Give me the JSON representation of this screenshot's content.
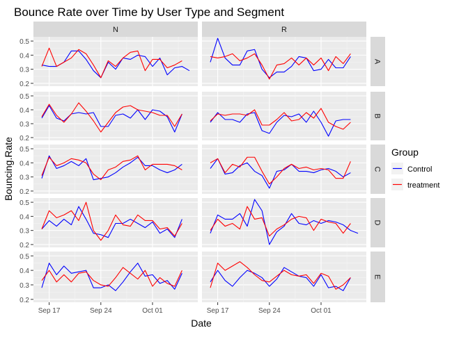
{
  "chart_data": {
    "type": "line",
    "title": "Bounce Rate over Time by User Type and Segment",
    "xlabel": "Date",
    "ylabel": "Bouncing.Rate",
    "facet_columns": [
      "N",
      "R"
    ],
    "facet_rows": [
      "A",
      "B",
      "C",
      "D",
      "E"
    ],
    "x_dates": [
      "Sep 16",
      "Sep 17",
      "Sep 18",
      "Sep 19",
      "Sep 20",
      "Sep 21",
      "Sep 22",
      "Sep 23",
      "Sep 24",
      "Sep 25",
      "Sep 26",
      "Sep 27",
      "Sep 28",
      "Sep 29",
      "Sep 30",
      "Oct 01",
      "Oct 02",
      "Oct 03",
      "Oct 04",
      "Oct 05",
      "Oct 06"
    ],
    "x_ticks": [
      "Sep 17",
      "Sep 24",
      "Oct 01"
    ],
    "y_ticks": [
      "0.2",
      "0.3",
      "0.4",
      "0.5"
    ],
    "ylim": [
      0.18,
      0.53
    ],
    "grid": true,
    "legend": {
      "title": "Group",
      "position": "right",
      "entries": [
        {
          "label": "Control",
          "color": "#0000FF"
        },
        {
          "label": "treatment",
          "color": "#FF0000"
        }
      ]
    },
    "panels": [
      {
        "col": "N",
        "row": "A",
        "series": [
          {
            "name": "Control",
            "values": [
              0.33,
              0.32,
              0.32,
              0.35,
              0.43,
              0.43,
              0.37,
              0.29,
              0.24,
              0.35,
              0.3,
              0.38,
              0.37,
              0.4,
              0.39,
              0.32,
              0.38,
              0.26,
              0.31,
              0.32,
              0.29
            ]
          },
          {
            "name": "treatment",
            "values": [
              0.32,
              0.45,
              0.32,
              0.35,
              0.38,
              0.44,
              0.41,
              0.33,
              0.24,
              0.36,
              0.32,
              0.38,
              0.42,
              0.43,
              0.29,
              0.37,
              0.37,
              0.31,
              0.33,
              0.36,
              null
            ]
          }
        ]
      },
      {
        "col": "R",
        "row": "A",
        "series": [
          {
            "name": "Control",
            "values": [
              0.35,
              0.52,
              0.38,
              0.33,
              0.33,
              0.43,
              0.44,
              0.3,
              0.24,
              0.28,
              0.28,
              0.32,
              0.39,
              0.38,
              0.29,
              0.3,
              0.37,
              0.31,
              0.31,
              0.39,
              null
            ]
          },
          {
            "name": "treatment",
            "values": [
              0.39,
              0.38,
              0.39,
              0.41,
              0.36,
              0.38,
              0.41,
              0.33,
              0.23,
              0.33,
              0.34,
              0.38,
              0.33,
              0.38,
              0.33,
              0.38,
              0.29,
              0.39,
              0.34,
              0.41,
              null
            ]
          }
        ]
      },
      {
        "col": "N",
        "row": "B",
        "series": [
          {
            "name": "Control",
            "values": [
              0.34,
              0.43,
              0.34,
              0.32,
              0.37,
              0.38,
              0.37,
              0.38,
              0.28,
              0.28,
              0.36,
              0.37,
              0.34,
              0.4,
              0.33,
              0.4,
              0.39,
              0.35,
              0.24,
              0.37,
              null
            ]
          },
          {
            "name": "treatment",
            "values": [
              0.35,
              0.44,
              0.36,
              0.31,
              0.37,
              0.45,
              0.39,
              0.32,
              0.24,
              0.31,
              0.38,
              0.42,
              0.43,
              0.4,
              0.39,
              0.38,
              0.36,
              0.36,
              0.28,
              0.37,
              null
            ]
          }
        ]
      },
      {
        "col": "R",
        "row": "B",
        "series": [
          {
            "name": "Control",
            "values": [
              0.31,
              0.38,
              0.33,
              0.33,
              0.31,
              0.37,
              0.38,
              0.25,
              0.23,
              0.31,
              0.36,
              0.35,
              0.37,
              0.31,
              0.39,
              0.31,
              0.21,
              0.32,
              0.33,
              0.33,
              null
            ]
          },
          {
            "name": "treatment",
            "values": [
              0.32,
              0.37,
              0.36,
              0.37,
              0.37,
              0.36,
              0.4,
              0.29,
              0.29,
              0.33,
              0.38,
              0.32,
              0.33,
              0.38,
              0.34,
              0.41,
              0.31,
              0.28,
              0.26,
              0.31,
              null
            ]
          }
        ]
      },
      {
        "col": "N",
        "row": "C",
        "series": [
          {
            "name": "Control",
            "values": [
              0.29,
              0.45,
              0.36,
              0.38,
              0.41,
              0.38,
              0.43,
              0.28,
              0.29,
              0.3,
              0.33,
              0.37,
              0.4,
              0.44,
              0.38,
              0.38,
              0.35,
              0.33,
              0.35,
              0.39,
              null
            ]
          },
          {
            "name": "treatment",
            "values": [
              0.31,
              0.44,
              0.38,
              0.4,
              0.43,
              0.42,
              0.4,
              0.32,
              0.28,
              0.35,
              0.37,
              0.41,
              0.42,
              0.45,
              0.35,
              0.39,
              0.39,
              0.39,
              0.38,
              0.35,
              null
            ]
          }
        ]
      },
      {
        "col": "R",
        "row": "C",
        "series": [
          {
            "name": "Control",
            "values": [
              0.36,
              0.43,
              0.32,
              0.33,
              0.38,
              0.4,
              0.34,
              0.31,
              0.22,
              0.34,
              0.35,
              0.39,
              0.34,
              0.34,
              0.33,
              0.35,
              0.36,
              0.34,
              0.3,
              0.33,
              null
            ]
          },
          {
            "name": "treatment",
            "values": [
              0.4,
              0.43,
              0.33,
              0.39,
              0.37,
              0.44,
              0.44,
              0.34,
              0.25,
              0.3,
              0.36,
              0.39,
              0.36,
              0.37,
              0.35,
              0.36,
              0.35,
              0.29,
              0.29,
              0.41,
              null
            ]
          }
        ]
      },
      {
        "col": "N",
        "row": "D",
        "series": [
          {
            "name": "Control",
            "values": [
              0.31,
              0.37,
              0.33,
              0.38,
              0.34,
              0.47,
              0.38,
              0.28,
              0.27,
              0.25,
              0.35,
              0.35,
              0.38,
              0.35,
              0.32,
              0.36,
              0.28,
              0.31,
              0.25,
              0.38,
              null
            ]
          },
          {
            "name": "treatment",
            "values": [
              0.31,
              0.44,
              0.39,
              0.41,
              0.44,
              0.37,
              0.5,
              0.3,
              0.23,
              0.3,
              0.41,
              0.34,
              0.33,
              0.41,
              0.37,
              0.37,
              0.31,
              0.32,
              0.26,
              0.35,
              null
            ]
          }
        ]
      },
      {
        "col": "R",
        "row": "D",
        "series": [
          {
            "name": "Control",
            "values": [
              0.28,
              0.41,
              0.38,
              0.38,
              0.42,
              0.33,
              0.52,
              0.44,
              0.2,
              0.29,
              0.33,
              0.42,
              0.35,
              0.34,
              0.37,
              0.35,
              0.37,
              0.36,
              0.34,
              0.3,
              0.28
            ]
          },
          {
            "name": "treatment",
            "values": [
              0.3,
              0.38,
              0.33,
              0.35,
              0.31,
              0.47,
              0.38,
              0.39,
              0.26,
              0.31,
              0.34,
              0.38,
              0.4,
              0.39,
              0.3,
              0.38,
              0.36,
              0.35,
              0.28,
              0.35,
              null
            ]
          }
        ]
      },
      {
        "col": "N",
        "row": "E",
        "series": [
          {
            "name": "Control",
            "values": [
              0.28,
              0.45,
              0.37,
              0.43,
              0.38,
              0.39,
              0.4,
              0.28,
              0.28,
              0.3,
              0.26,
              0.32,
              0.39,
              0.45,
              0.36,
              0.37,
              0.31,
              0.33,
              0.27,
              0.38,
              null
            ]
          },
          {
            "name": "treatment",
            "values": [
              0.33,
              0.4,
              0.32,
              0.37,
              0.32,
              0.38,
              0.39,
              0.33,
              0.3,
              0.29,
              0.35,
              0.42,
              0.38,
              0.34,
              0.4,
              0.29,
              0.35,
              0.31,
              0.29,
              0.4,
              null
            ]
          }
        ]
      },
      {
        "col": "R",
        "row": "E",
        "series": [
          {
            "name": "Control",
            "values": [
              0.32,
              0.4,
              0.33,
              0.29,
              0.35,
              0.4,
              0.38,
              0.35,
              0.29,
              0.34,
              0.42,
              0.39,
              0.36,
              0.35,
              0.29,
              0.37,
              0.28,
              0.29,
              0.26,
              0.35,
              null
            ]
          },
          {
            "name": "treatment",
            "values": [
              0.28,
              0.45,
              0.4,
              0.43,
              0.46,
              0.42,
              0.37,
              0.33,
              0.32,
              0.36,
              0.4,
              0.37,
              0.36,
              0.37,
              0.31,
              0.38,
              0.36,
              0.27,
              0.3,
              0.35,
              null
            ]
          }
        ]
      }
    ]
  }
}
